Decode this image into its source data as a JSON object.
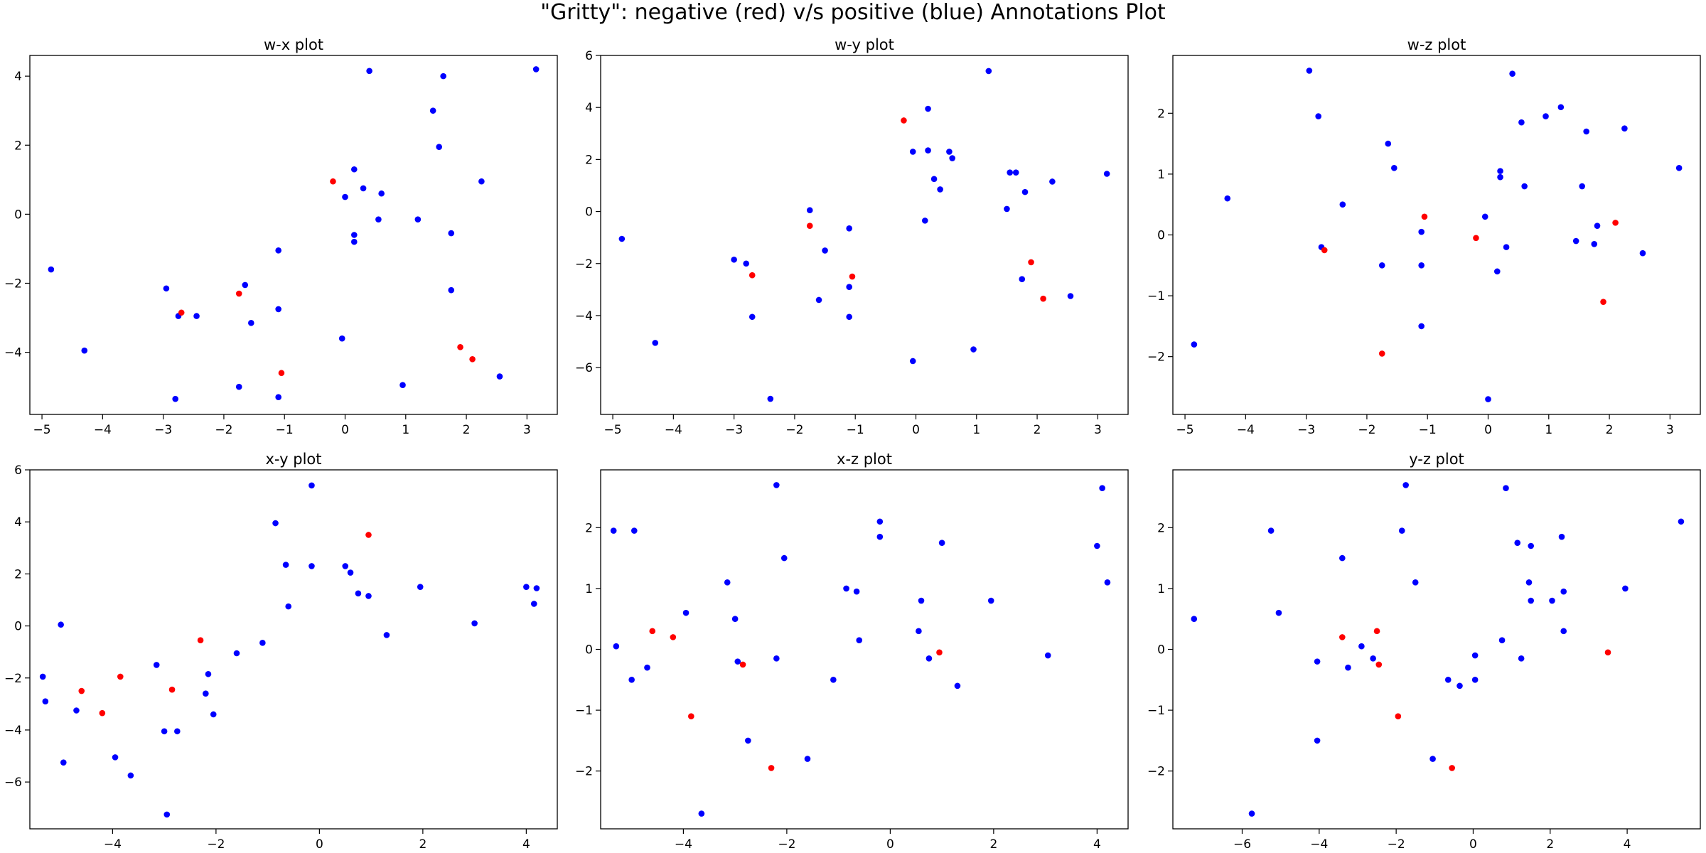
{
  "figure": {
    "title": "\"Gritty\": negative (red) v/s positive (blue) Annotations Plot"
  },
  "colors": {
    "negative": "#ff0000",
    "positive": "#0000ff",
    "axes": "#000000"
  },
  "chart_data": [
    {
      "type": "scatter",
      "title": "w-x plot",
      "xlim": [
        -5.2,
        3.5
      ],
      "ylim": [
        -5.8,
        4.6
      ],
      "xticks": [
        -5,
        -4,
        -3,
        -2,
        -1,
        0,
        1,
        2,
        3
      ],
      "yticks": [
        -4,
        -2,
        0,
        2,
        4
      ],
      "series": [
        {
          "color": "#0000ff",
          "points": [
            [
              -4.85,
              -1.6
            ],
            [
              -4.3,
              -3.95
            ],
            [
              -2.95,
              -2.15
            ],
            [
              -2.75,
              -2.95
            ],
            [
              -2.45,
              -2.95
            ],
            [
              -2.8,
              -5.35
            ],
            [
              -1.75,
              -5.0
            ],
            [
              -1.65,
              -2.05
            ],
            [
              -1.55,
              -3.15
            ],
            [
              -1.1,
              -1.05
            ],
            [
              -1.1,
              -2.75
            ],
            [
              -1.1,
              -5.3
            ],
            [
              -0.05,
              -3.6
            ],
            [
              0.0,
              0.5
            ],
            [
              0.15,
              1.3
            ],
            [
              0.15,
              -0.6
            ],
            [
              0.15,
              -0.8
            ],
            [
              0.3,
              0.75
            ],
            [
              0.4,
              4.15
            ],
            [
              0.55,
              -0.15
            ],
            [
              0.6,
              0.6
            ],
            [
              0.95,
              -4.95
            ],
            [
              1.2,
              -0.15
            ],
            [
              1.45,
              3.0
            ],
            [
              1.55,
              1.95
            ],
            [
              1.62,
              4.0
            ],
            [
              1.75,
              -0.55
            ],
            [
              1.75,
              -2.2
            ],
            [
              2.25,
              0.95
            ],
            [
              2.55,
              -4.7
            ],
            [
              3.15,
              4.2
            ]
          ]
        },
        {
          "color": "#ff0000",
          "points": [
            [
              -2.7,
              -2.85
            ],
            [
              -1.75,
              -2.3
            ],
            [
              -1.05,
              -4.6
            ],
            [
              -0.2,
              0.95
            ],
            [
              1.9,
              -3.85
            ],
            [
              2.1,
              -4.2
            ]
          ]
        }
      ]
    },
    {
      "type": "scatter",
      "title": "w-y plot",
      "xlim": [
        -5.2,
        3.5
      ],
      "ylim": [
        -7.8,
        6.0
      ],
      "xticks": [
        -5,
        -4,
        -3,
        -2,
        -1,
        0,
        1,
        2,
        3
      ],
      "yticks": [
        -6,
        -4,
        -2,
        0,
        2,
        4,
        6
      ],
      "series": [
        {
          "color": "#0000ff",
          "points": [
            [
              -4.85,
              -1.05
            ],
            [
              -4.3,
              -5.05
            ],
            [
              -3.0,
              -1.85
            ],
            [
              -2.8,
              -2.0
            ],
            [
              -2.7,
              -4.05
            ],
            [
              -2.4,
              -7.2
            ],
            [
              -1.75,
              0.05
            ],
            [
              -1.6,
              -3.4
            ],
            [
              -1.5,
              -1.5
            ],
            [
              -1.1,
              -0.65
            ],
            [
              -1.1,
              -2.9
            ],
            [
              -1.1,
              -4.05
            ],
            [
              -0.05,
              2.3
            ],
            [
              -0.05,
              -5.75
            ],
            [
              0.15,
              -0.35
            ],
            [
              0.2,
              3.95
            ],
            [
              0.2,
              2.35
            ],
            [
              0.3,
              1.25
            ],
            [
              0.4,
              0.85
            ],
            [
              0.55,
              2.3
            ],
            [
              0.6,
              2.05
            ],
            [
              0.95,
              -5.3
            ],
            [
              1.2,
              5.4
            ],
            [
              1.5,
              0.1
            ],
            [
              1.55,
              1.5
            ],
            [
              1.65,
              1.5
            ],
            [
              1.75,
              -2.6
            ],
            [
              1.8,
              0.75
            ],
            [
              2.25,
              1.15
            ],
            [
              2.55,
              -3.25
            ],
            [
              3.15,
              1.45
            ]
          ]
        },
        {
          "color": "#ff0000",
          "points": [
            [
              -2.7,
              -2.45
            ],
            [
              -1.75,
              -0.55
            ],
            [
              -1.05,
              -2.5
            ],
            [
              -0.2,
              3.5
            ],
            [
              1.9,
              -1.95
            ],
            [
              2.1,
              -3.35
            ]
          ]
        }
      ]
    },
    {
      "type": "scatter",
      "title": "w-z plot",
      "xlim": [
        -5.2,
        3.5
      ],
      "ylim": [
        -2.95,
        2.95
      ],
      "xticks": [
        -5,
        -4,
        -3,
        -2,
        -1,
        0,
        1,
        2,
        3
      ],
      "yticks": [
        -2,
        -1,
        0,
        1,
        2
      ],
      "series": [
        {
          "color": "#0000ff",
          "points": [
            [
              -4.85,
              -1.8
            ],
            [
              -4.3,
              0.6
            ],
            [
              -2.95,
              2.7
            ],
            [
              -2.8,
              1.95
            ],
            [
              -2.75,
              -0.2
            ],
            [
              -2.4,
              0.5
            ],
            [
              -1.75,
              -0.5
            ],
            [
              -1.65,
              1.5
            ],
            [
              -1.55,
              1.1
            ],
            [
              -1.1,
              0.05
            ],
            [
              -1.1,
              -0.5
            ],
            [
              -1.1,
              -1.5
            ],
            [
              -0.05,
              0.3
            ],
            [
              -0.0,
              -2.7
            ],
            [
              0.15,
              -0.6
            ],
            [
              0.2,
              1.05
            ],
            [
              0.2,
              0.95
            ],
            [
              0.3,
              -0.2
            ],
            [
              0.4,
              2.65
            ],
            [
              0.55,
              1.85
            ],
            [
              0.6,
              0.8
            ],
            [
              0.95,
              1.95
            ],
            [
              1.2,
              2.1
            ],
            [
              1.45,
              -0.1
            ],
            [
              1.55,
              0.8
            ],
            [
              1.62,
              1.7
            ],
            [
              1.75,
              -0.15
            ],
            [
              1.8,
              0.15
            ],
            [
              2.25,
              1.75
            ],
            [
              2.55,
              -0.3
            ],
            [
              3.15,
              1.1
            ]
          ]
        },
        {
          "color": "#ff0000",
          "points": [
            [
              -2.7,
              -0.25
            ],
            [
              -1.75,
              -1.95
            ],
            [
              -1.05,
              0.3
            ],
            [
              -0.2,
              -0.05
            ],
            [
              1.9,
              -1.1
            ],
            [
              2.1,
              0.2
            ]
          ]
        }
      ]
    },
    {
      "type": "scatter",
      "title": "x-y plot",
      "xlim": [
        -5.6,
        4.6
      ],
      "ylim": [
        -7.8,
        6.0
      ],
      "xticks": [
        -4,
        -2,
        0,
        2,
        4
      ],
      "yticks": [
        -6,
        -4,
        -2,
        0,
        2,
        4,
        6
      ],
      "series": [
        {
          "color": "#0000ff",
          "points": [
            [
              -5.35,
              -1.95
            ],
            [
              -5.3,
              -2.9
            ],
            [
              -5.0,
              0.05
            ],
            [
              -4.95,
              -5.25
            ],
            [
              -4.7,
              -3.25
            ],
            [
              -3.95,
              -5.05
            ],
            [
              -3.65,
              -5.75
            ],
            [
              -3.15,
              -1.5
            ],
            [
              -3.0,
              -4.05
            ],
            [
              -2.95,
              -7.25
            ],
            [
              -2.75,
              -4.05
            ],
            [
              -2.2,
              -2.6
            ],
            [
              -2.15,
              -1.85
            ],
            [
              -2.05,
              -3.4
            ],
            [
              -1.6,
              -1.05
            ],
            [
              -1.1,
              -0.65
            ],
            [
              -0.85,
              3.95
            ],
            [
              -0.65,
              2.35
            ],
            [
              -0.6,
              0.75
            ],
            [
              -0.15,
              5.4
            ],
            [
              -0.15,
              2.3
            ],
            [
              0.5,
              2.3
            ],
            [
              0.6,
              2.05
            ],
            [
              0.75,
              1.25
            ],
            [
              0.95,
              1.15
            ],
            [
              1.3,
              -0.35
            ],
            [
              1.95,
              1.5
            ],
            [
              3.0,
              0.1
            ],
            [
              4.0,
              1.5
            ],
            [
              4.15,
              0.85
            ],
            [
              4.2,
              1.45
            ]
          ]
        },
        {
          "color": "#ff0000",
          "points": [
            [
              -4.6,
              -2.5
            ],
            [
              -4.2,
              -3.35
            ],
            [
              -3.85,
              -1.95
            ],
            [
              -2.85,
              -2.45
            ],
            [
              -2.3,
              -0.55
            ],
            [
              0.95,
              3.5
            ]
          ]
        }
      ]
    },
    {
      "type": "scatter",
      "title": "x-z plot",
      "xlim": [
        -5.6,
        4.6
      ],
      "ylim": [
        -2.95,
        2.95
      ],
      "xticks": [
        -4,
        -2,
        0,
        2,
        4
      ],
      "yticks": [
        -2,
        -1,
        0,
        1,
        2
      ],
      "series": [
        {
          "color": "#0000ff",
          "points": [
            [
              -5.35,
              1.95
            ],
            [
              -5.3,
              0.05
            ],
            [
              -5.0,
              -0.5
            ],
            [
              -4.95,
              1.95
            ],
            [
              -4.7,
              -0.3
            ],
            [
              -3.95,
              0.6
            ],
            [
              -3.65,
              -2.7
            ],
            [
              -3.15,
              1.1
            ],
            [
              -3.0,
              0.5
            ],
            [
              -2.95,
              -0.2
            ],
            [
              -2.75,
              -1.5
            ],
            [
              -2.2,
              2.7
            ],
            [
              -2.2,
              -0.15
            ],
            [
              -2.05,
              1.5
            ],
            [
              -1.6,
              -1.8
            ],
            [
              -1.1,
              -0.5
            ],
            [
              -0.85,
              1.0
            ],
            [
              -0.65,
              0.95
            ],
            [
              -0.6,
              0.15
            ],
            [
              -0.2,
              2.1
            ],
            [
              -0.2,
              1.85
            ],
            [
              0.55,
              0.3
            ],
            [
              0.6,
              0.8
            ],
            [
              0.75,
              -0.15
            ],
            [
              1.0,
              1.75
            ],
            [
              1.3,
              -0.6
            ],
            [
              1.95,
              0.8
            ],
            [
              3.05,
              -0.1
            ],
            [
              4.0,
              1.7
            ],
            [
              4.1,
              2.65
            ],
            [
              4.2,
              1.1
            ]
          ]
        },
        {
          "color": "#ff0000",
          "points": [
            [
              -4.6,
              0.3
            ],
            [
              -4.2,
              0.2
            ],
            [
              -3.85,
              -1.1
            ],
            [
              -2.85,
              -0.25
            ],
            [
              -2.3,
              -1.95
            ],
            [
              0.95,
              -0.05
            ]
          ]
        }
      ]
    },
    {
      "type": "scatter",
      "title": "y-z plot",
      "xlim": [
        -7.8,
        5.9
      ],
      "ylim": [
        -2.95,
        2.95
      ],
      "xticks": [
        -6,
        -4,
        -2,
        0,
        2,
        4
      ],
      "yticks": [
        -2,
        -1,
        0,
        1,
        2
      ],
      "series": [
        {
          "color": "#0000ff",
          "points": [
            [
              -7.25,
              0.5
            ],
            [
              -5.75,
              -2.7
            ],
            [
              -5.25,
              1.95
            ],
            [
              -5.05,
              0.6
            ],
            [
              -4.05,
              -1.5
            ],
            [
              -4.05,
              -0.2
            ],
            [
              -3.4,
              1.5
            ],
            [
              -3.25,
              -0.3
            ],
            [
              -2.9,
              0.05
            ],
            [
              -2.6,
              -0.15
            ],
            [
              -1.85,
              1.95
            ],
            [
              -1.75,
              2.7
            ],
            [
              -1.5,
              1.1
            ],
            [
              -1.05,
              -1.8
            ],
            [
              -0.65,
              -0.5
            ],
            [
              -0.35,
              -0.6
            ],
            [
              0.05,
              -0.1
            ],
            [
              0.05,
              -0.5
            ],
            [
              0.75,
              0.15
            ],
            [
              0.85,
              2.65
            ],
            [
              1.15,
              1.75
            ],
            [
              1.25,
              -0.15
            ],
            [
              1.45,
              1.1
            ],
            [
              1.5,
              1.7
            ],
            [
              1.5,
              0.8
            ],
            [
              2.05,
              0.8
            ],
            [
              2.3,
              1.85
            ],
            [
              2.35,
              0.3
            ],
            [
              2.35,
              0.95
            ],
            [
              3.95,
              1.0
            ],
            [
              5.4,
              2.1
            ]
          ]
        },
        {
          "color": "#ff0000",
          "points": [
            [
              -3.4,
              0.2
            ],
            [
              -2.5,
              0.3
            ],
            [
              -2.45,
              -0.25
            ],
            [
              -1.95,
              -1.1
            ],
            [
              -0.55,
              -1.95
            ],
            [
              3.5,
              -0.05
            ]
          ]
        }
      ]
    }
  ]
}
